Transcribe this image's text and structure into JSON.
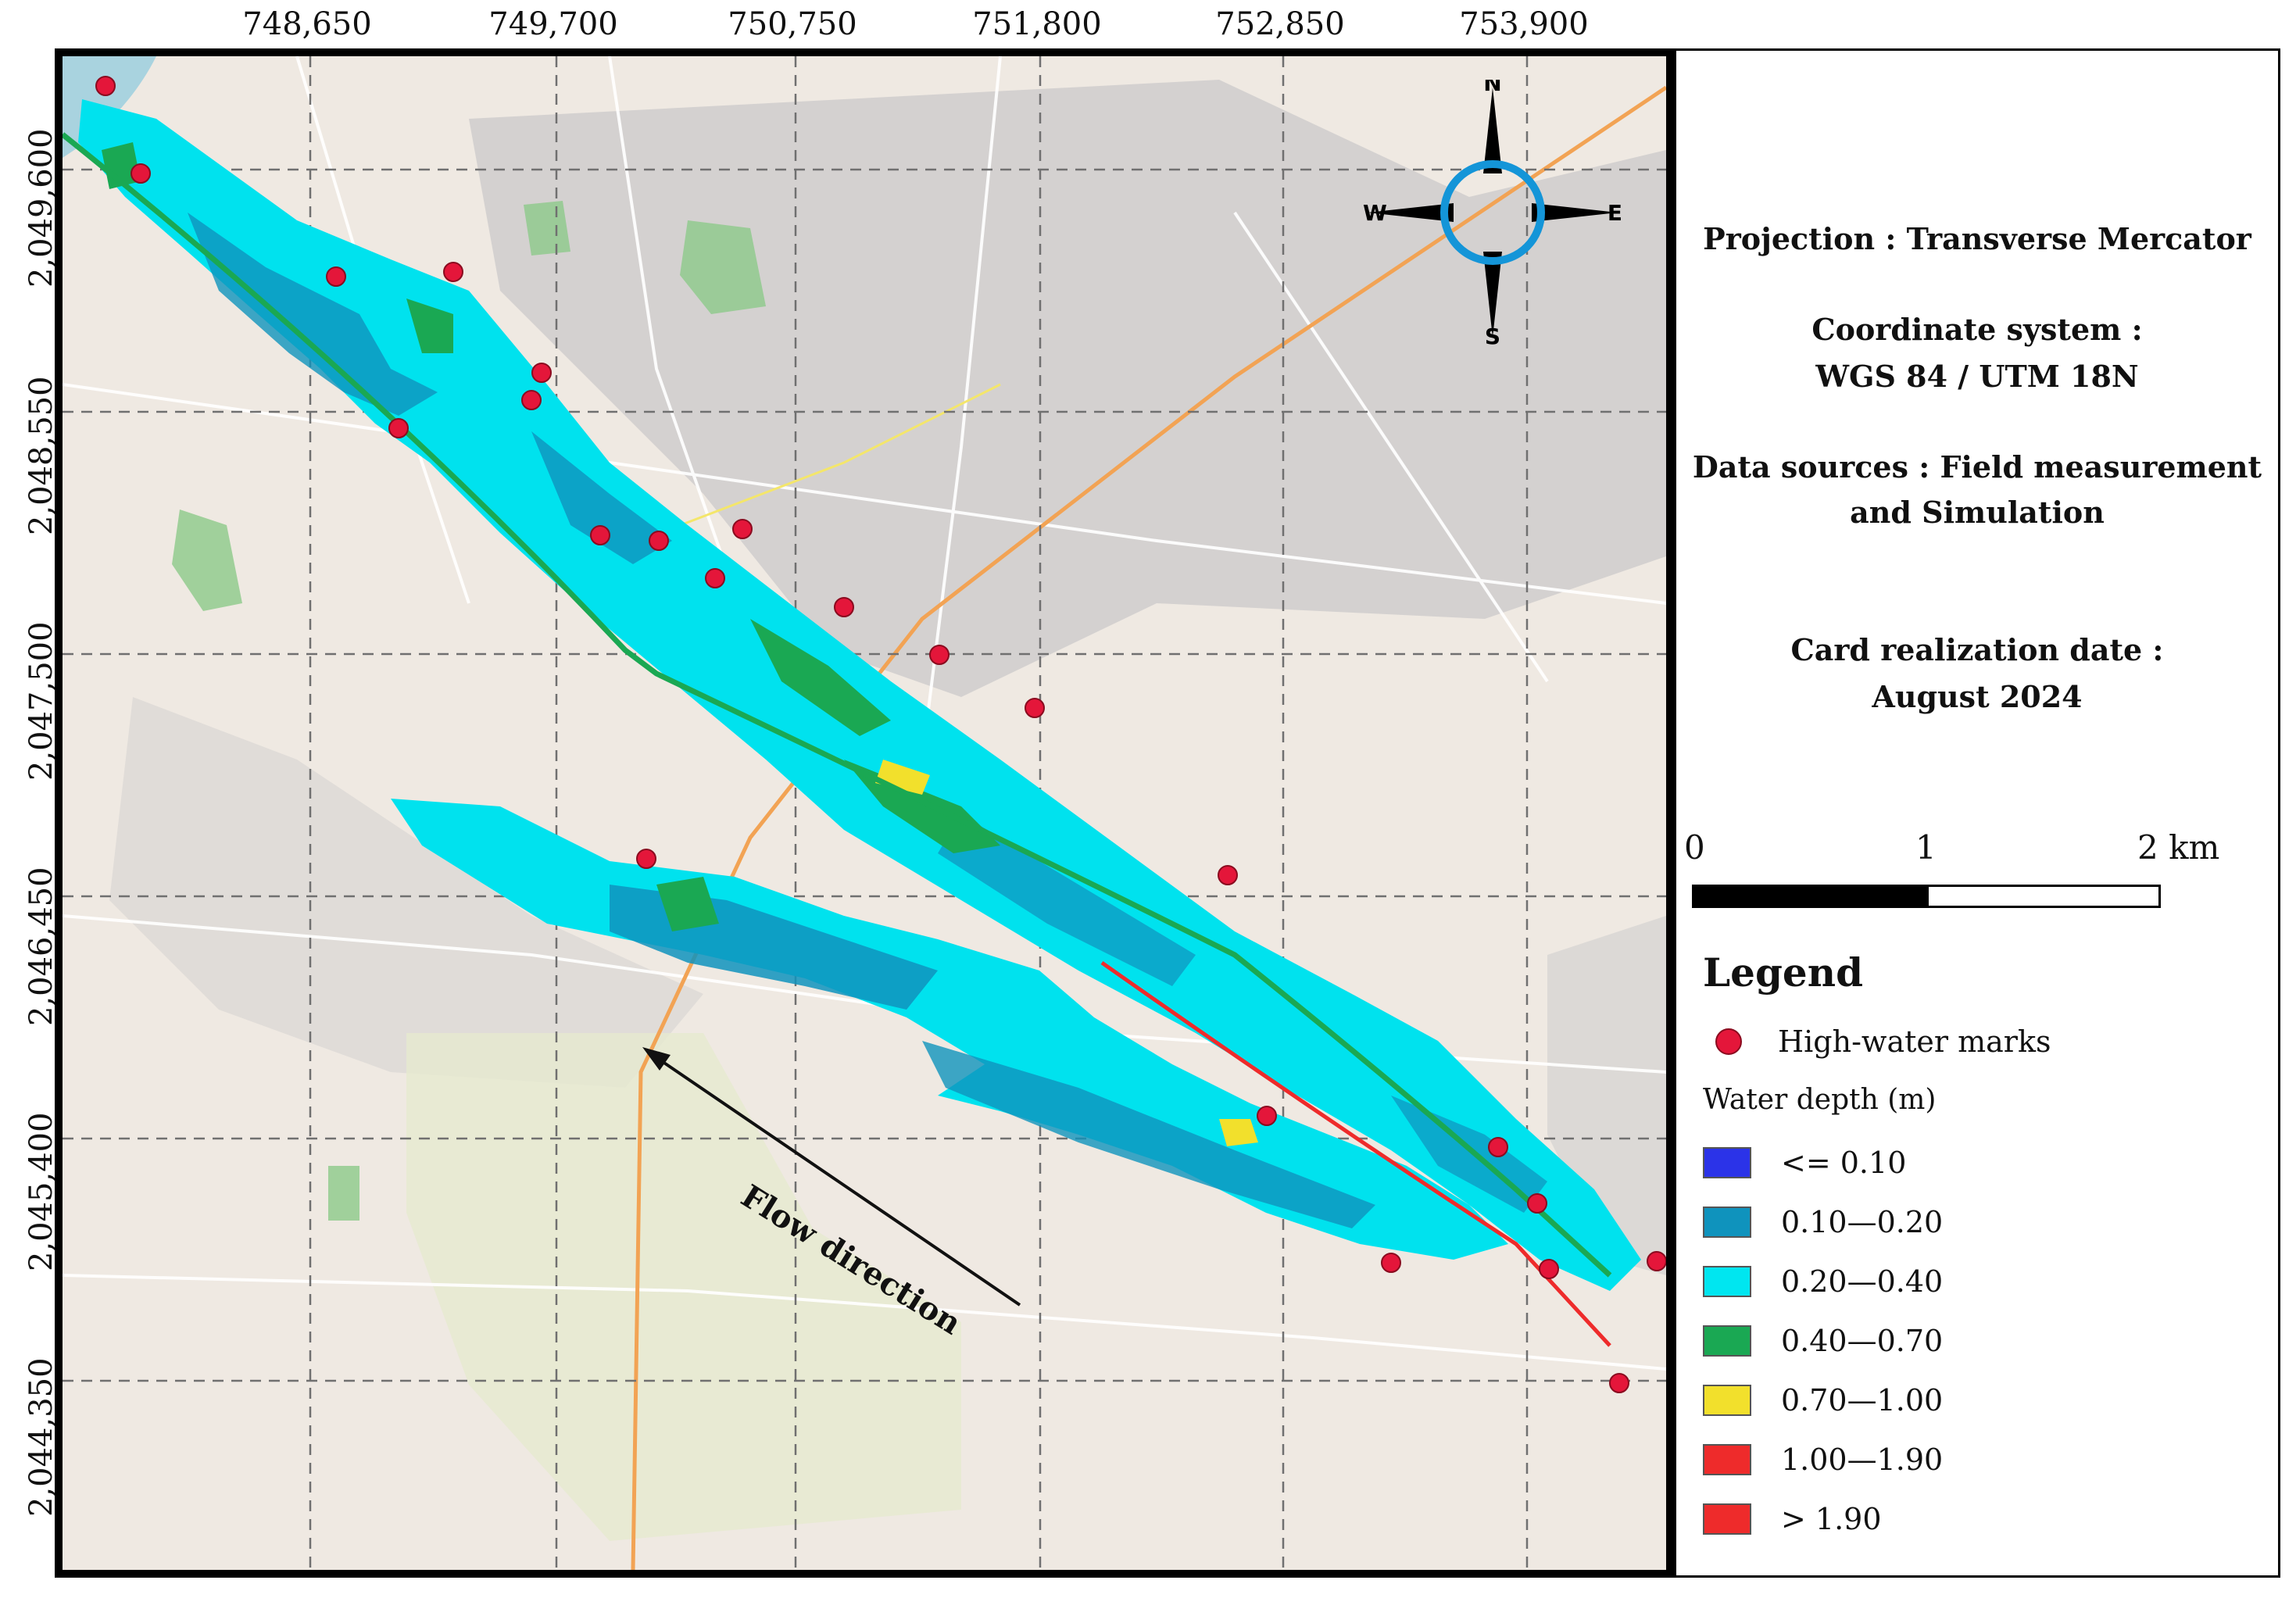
{
  "axes": {
    "x_ticks": [
      "748,650",
      "749,700",
      "750,750",
      "751,800",
      "752,850",
      "753,900"
    ],
    "y_ticks": [
      "2,049,600",
      "2,048,550",
      "2,047,500",
      "2,046,450",
      "2,045,400",
      "2,044,350"
    ]
  },
  "compass": {
    "n": "N",
    "s": "S",
    "e": "E",
    "w": "W"
  },
  "info": {
    "projection": "Projection :  Transverse Mercator",
    "coord_label": "Coordinate system :",
    "coord_value": "WGS 84 / UTM 18N",
    "data_label": "Data sources : Field measurement",
    "data_value": "and Simulation",
    "date_label": "Card realization date :",
    "date_value": "August 2024"
  },
  "scale": {
    "zero": "0",
    "one": "1",
    "two": "2 km"
  },
  "legend": {
    "title": "Legend",
    "high_water_marks": "High-water marks",
    "depth_title": "Water depth (m)",
    "classes": [
      {
        "label": "<= 0.10",
        "color": "#2b33e8"
      },
      {
        "label": "0.10—0.20",
        "color": "#0f93bd"
      },
      {
        "label": "0.20—0.40",
        "color": "#00e6f0"
      },
      {
        "label": "0.40—0.70",
        "color": "#1aa853"
      },
      {
        "label": "0.70—1.00",
        "color": "#f2e02c"
      },
      {
        "label": "1.00—1.90",
        "color": "#ee2b2b"
      },
      {
        "label": "> 1.90",
        "color": "#ee2b2b"
      }
    ]
  },
  "map": {
    "flow_label": "Flow direction",
    "marker_color": "#e4163a"
  }
}
